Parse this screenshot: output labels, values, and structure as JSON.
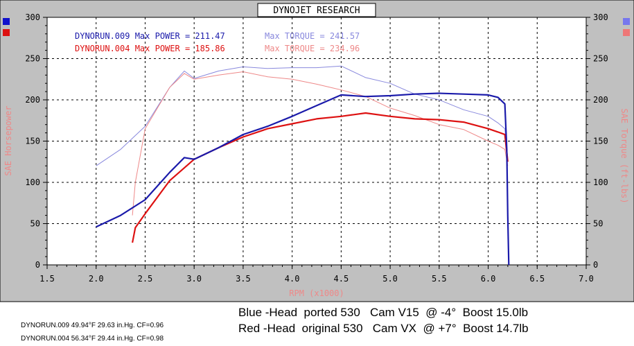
{
  "chart_data": {
    "type": "line",
    "title": "DYNOJET RESEARCH",
    "xlabel": "RPM (x1000)",
    "ylabel_left": "SAE Horsepower",
    "ylabel_right": "SAE Torque (ft-lbs)",
    "xlim": [
      1.5,
      7.0
    ],
    "ylim": [
      0,
      300
    ],
    "x_ticks": [
      "1.5",
      "2.0",
      "2.5",
      "3.0",
      "3.5",
      "4.0",
      "4.5",
      "5.0",
      "5.5",
      "6.0",
      "6.5",
      "7.0"
    ],
    "y_ticks": [
      "0",
      "50",
      "100",
      "150",
      "200",
      "250",
      "300"
    ],
    "grid": true,
    "legend": [
      {
        "run": "DYNORUN.009",
        "power_text": "Max POWER = 211.47",
        "torque_text": "Max TORQUE = 241.57",
        "color": "#1a1aaa",
        "torque_color": "#8888dd"
      },
      {
        "run": "DYNORUN.004",
        "power_text": "Max POWER = 185.86",
        "torque_text": "Max TORQUE = 234.96",
        "color": "#dd1111",
        "torque_color": "#ee8888"
      }
    ],
    "series": [
      {
        "name": "DYNORUN.009",
        "measure": "power",
        "color": "#1a1aaa",
        "x": [
          2.0,
          2.25,
          2.5,
          2.75,
          2.9,
          3.0,
          3.25,
          3.5,
          3.75,
          4.0,
          4.25,
          4.5,
          4.75,
          5.0,
          5.25,
          5.5,
          5.75,
          6.0,
          6.1,
          6.17,
          6.19,
          6.2,
          6.21
        ],
        "y": [
          46,
          60,
          79,
          112,
          130,
          128,
          142,
          158,
          168,
          180,
          193,
          206,
          204,
          205,
          207,
          208,
          207,
          206,
          203,
          195,
          140,
          60,
          0
        ]
      },
      {
        "name": "DYNORUN.009",
        "measure": "torque",
        "color": "#8888dd",
        "x": [
          2.0,
          2.25,
          2.5,
          2.75,
          2.9,
          3.0,
          3.25,
          3.5,
          3.75,
          4.0,
          4.25,
          4.5,
          4.75,
          5.0,
          5.25,
          5.5,
          5.75,
          6.0,
          6.1,
          6.17,
          6.2
        ],
        "y": [
          120,
          140,
          168,
          215,
          235,
          226,
          235,
          240,
          238,
          239,
          239,
          241,
          227,
          220,
          207,
          200,
          188,
          180,
          172,
          165,
          130
        ]
      },
      {
        "name": "DYNORUN.004",
        "measure": "power",
        "color": "#dd1111",
        "x": [
          2.37,
          2.4,
          2.5,
          2.75,
          3.0,
          3.25,
          3.5,
          3.75,
          4.0,
          4.25,
          4.5,
          4.75,
          5.0,
          5.25,
          5.5,
          5.75,
          6.0,
          6.1,
          6.17,
          6.2
        ],
        "y": [
          27,
          45,
          62,
          102,
          128,
          142,
          155,
          165,
          171,
          177,
          180,
          184,
          180,
          177,
          176,
          173,
          165,
          161,
          158,
          125
        ]
      },
      {
        "name": "DYNORUN.004",
        "measure": "torque",
        "color": "#ee8888",
        "x": [
          2.37,
          2.4,
          2.5,
          2.75,
          2.9,
          3.0,
          3.25,
          3.5,
          3.75,
          4.0,
          4.25,
          4.5,
          4.75,
          5.0,
          5.25,
          5.5,
          5.75,
          6.0,
          6.1,
          6.17,
          6.2
        ],
        "y": [
          60,
          100,
          165,
          215,
          232,
          225,
          230,
          234,
          228,
          225,
          219,
          212,
          204,
          190,
          181,
          170,
          164,
          150,
          145,
          140,
          120
        ]
      }
    ]
  },
  "scale_markers": {
    "blue_color": "#1111cc",
    "red_color": "#dd1111",
    "right_blue_color": "#7777ee",
    "right_red_color": "#ee7777"
  },
  "annotations": {
    "line1": "Blue -Head  ported 530   Cam V15  @ -4°  Boost 15.0lb",
    "line2": "Red -Head  original 530   Cam VX  @ +7°  Boost 14.7lb",
    "footer1": "DYNORUN.009 49.94°F 29.63 in.Hg. CF=0.96",
    "footer2": "DYNORUN.004 56.34°F 29.44 in.Hg. CF=0.98"
  }
}
